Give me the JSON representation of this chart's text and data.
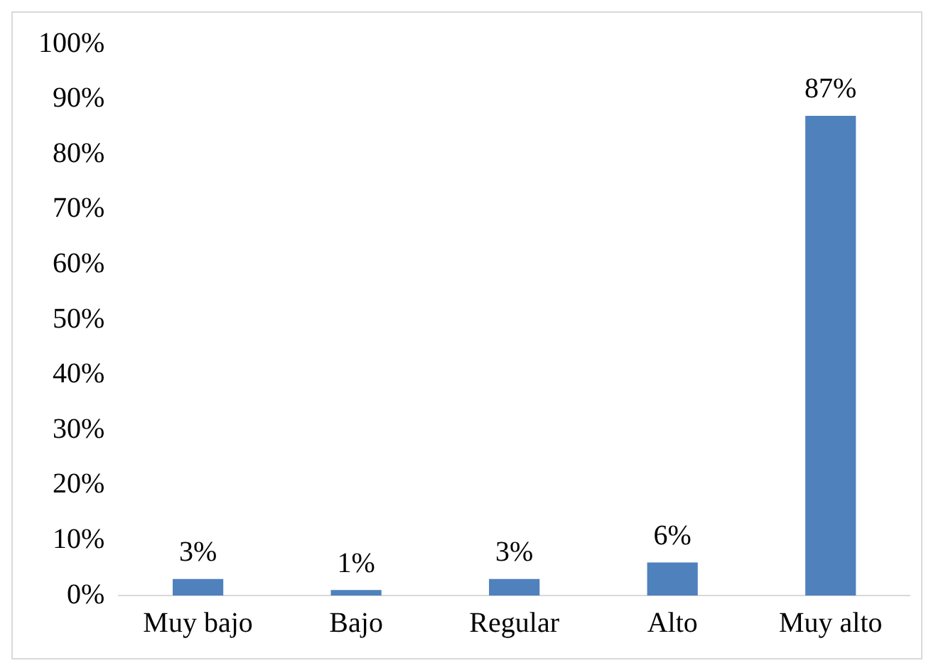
{
  "chart_data": {
    "type": "bar",
    "categories": [
      "Muy bajo",
      "Bajo",
      "Regular",
      "Alto",
      "Muy alto"
    ],
    "values": [
      3,
      1,
      3,
      6,
      87
    ],
    "value_labels": [
      "3%",
      "1%",
      "3%",
      "6%",
      "87%"
    ],
    "color": "#4f81bd",
    "ylim": [
      0,
      100
    ],
    "yticks": [
      {
        "value": 0,
        "label": "0%"
      },
      {
        "value": 10,
        "label": "10%"
      },
      {
        "value": 20,
        "label": "20%"
      },
      {
        "value": 30,
        "label": "30%"
      },
      {
        "value": 40,
        "label": "40%"
      },
      {
        "value": 50,
        "label": "50%"
      },
      {
        "value": 60,
        "label": "60%"
      },
      {
        "value": 70,
        "label": "70%"
      },
      {
        "value": 80,
        "label": "80%"
      },
      {
        "value": 90,
        "label": "90%"
      },
      {
        "value": 100,
        "label": "100%"
      }
    ],
    "grid": false,
    "legend": false
  }
}
